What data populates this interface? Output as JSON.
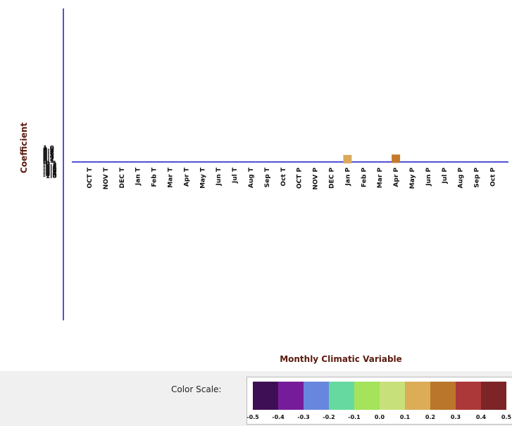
{
  "chart_data": {
    "type": "scatter",
    "ylabel": "Coefficient",
    "xlabel": "Monthly Climatic Variable",
    "ylim": [
      -1.0,
      1.0
    ],
    "y_ticks": [
      "1.0",
      "0.9",
      "0.8",
      "0.7",
      "0.6",
      "0.5",
      "0.4",
      "0.3",
      "0.2",
      "0.1",
      "0",
      "-0.1",
      "-0.2",
      "-0.3",
      "-0.4",
      "-0.5",
      "-0.6",
      "-0.7",
      "-0.8",
      "-0.9",
      "-1.0"
    ],
    "categories": [
      "OCT T",
      "NOV T",
      "DEC T",
      "Jan T",
      "Feb T",
      "Mar T",
      "Apr T",
      "May T",
      "Jun T",
      "Jul T",
      "Aug T",
      "Sep T",
      "Oct T",
      "OCT P",
      "NOV P",
      "DEC P",
      "Jan P",
      "Feb P",
      "Mar P",
      "Apr P",
      "May P",
      "Jun P",
      "Jul P",
      "Aug P",
      "Sep P",
      "Oct P"
    ],
    "points": [
      {
        "category": "Jan P",
        "value": 0.2,
        "color": "#dba95c"
      },
      {
        "category": "Apr P",
        "value": 0.23,
        "color": "#c47a2c"
      }
    ],
    "grid": false
  },
  "color_scale": {
    "label": "Color Scale:",
    "colors": [
      "#3f0f55",
      "#761c9b",
      "#6787de",
      "#66d9a0",
      "#a4e35a",
      "#c8e07a",
      "#dcac57",
      "#ba762a",
      "#ad3839",
      "#7c2426"
    ],
    "ticks": [
      "-0.5",
      "-0.4",
      "-0.3",
      "-0.2",
      "-0.1",
      "0.0",
      "0.1",
      "0.2",
      "0.3",
      "0.4",
      "0.5"
    ]
  }
}
